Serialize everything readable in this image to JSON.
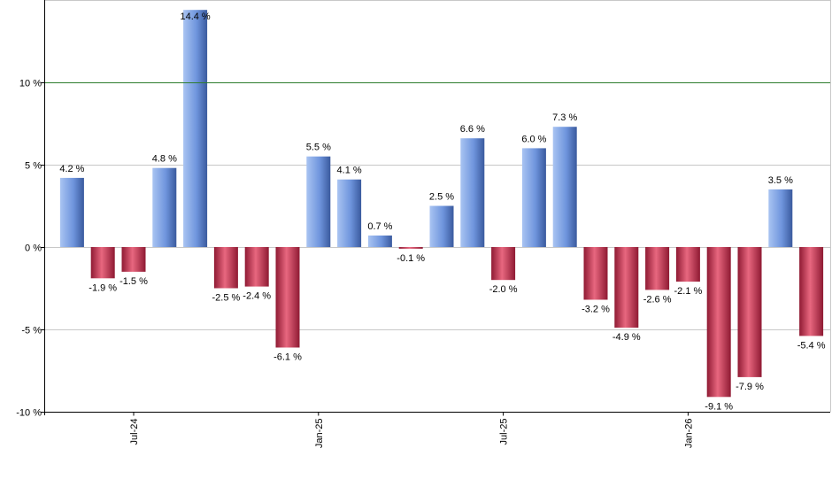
{
  "chart_data": {
    "type": "bar",
    "ylim": [
      -10,
      15
    ],
    "y_ticks": [
      {
        "value": 10,
        "label": "10 %"
      },
      {
        "value": 5,
        "label": "5 %"
      },
      {
        "value": 0,
        "label": "0 %"
      },
      {
        "value": -5,
        "label": "-5 %"
      },
      {
        "value": -10,
        "label": "-10 %"
      }
    ],
    "x_tick_labels": [
      {
        "index": 2.5,
        "label": "Jul-24"
      },
      {
        "index": 8.5,
        "label": "Jan-25"
      },
      {
        "index": 14.5,
        "label": "Jul-25"
      },
      {
        "index": 20.5,
        "label": "Jan-26"
      }
    ],
    "values": [
      4.2,
      -1.9,
      -1.5,
      4.8,
      14.4,
      -2.5,
      -2.4,
      -6.1,
      5.5,
      4.1,
      0.7,
      -0.1,
      2.5,
      6.6,
      -2.0,
      6.0,
      7.3,
      -3.2,
      -4.9,
      -2.6,
      -2.1,
      -9.1,
      -7.9,
      3.5,
      -5.4
    ],
    "data_labels": [
      "4.2 %",
      "-1.9 %",
      "-1.5 %",
      "4.8 %",
      "14.4 %",
      "-2.5 %",
      "-2.4 %",
      "-6.1 %",
      "5.5 %",
      "4.1 %",
      "0.7 %",
      "-0.1 %",
      "2.5 %",
      "6.6 %",
      "-2.0 %",
      "6.0 %",
      "7.3 %",
      "-3.2 %",
      "-4.9 %",
      "-2.6 %",
      "-2.1 %",
      "-9.1 %",
      "-7.9 %",
      "3.5 %",
      "-5.4 %"
    ],
    "reference_line": 10,
    "grid": true,
    "colors": {
      "positive": "#6f95dd",
      "negative": "#c9304f",
      "reference_line": "#2e7d2e",
      "grid": "#c8c8c8",
      "axis": "#000000"
    }
  }
}
